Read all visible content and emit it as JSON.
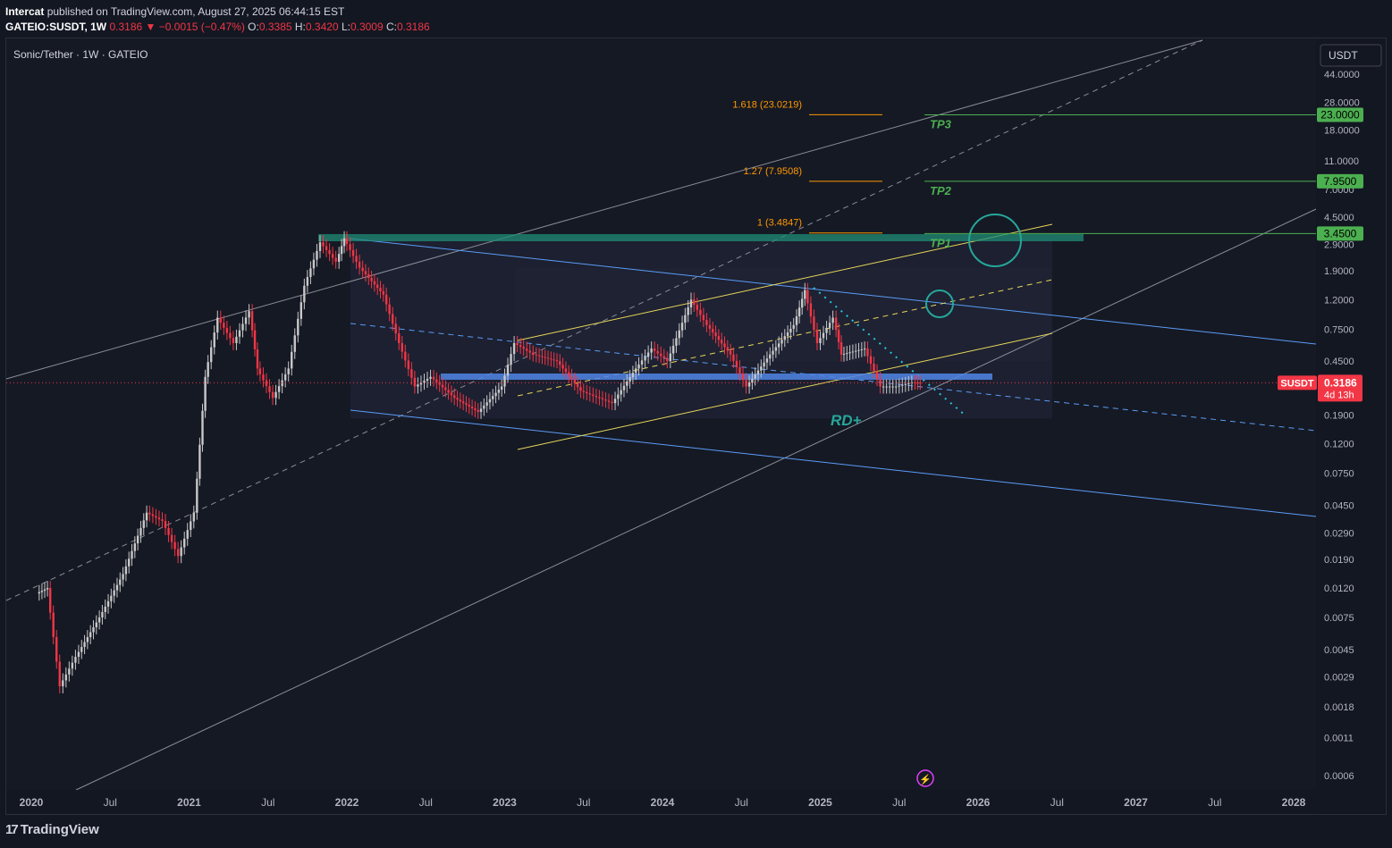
{
  "header": {
    "publisher": "Intercat",
    "published_text": "published on TradingView.com, August 27, 2025 06:44:15 EST",
    "symbol": "GATEIO:SUSDT, 1W",
    "price": "0.3186",
    "change": "−0.0015 (−0.47%)",
    "ohlc_o_label": "O:",
    "ohlc_o": "0.3385",
    "ohlc_h_label": "H:",
    "ohlc_h": "0.3420",
    "ohlc_l_label": "L:",
    "ohlc_l": "0.3009",
    "ohlc_c_label": "C:",
    "ohlc_c": "0.3186"
  },
  "chart_title": "Sonic/Tether · 1W · GATEIO",
  "currency_button": "USDT",
  "footer_brand": "TradingView",
  "colors": {
    "background": "#131722",
    "up": "#c8c8c8",
    "down": "#f23645",
    "tp": "#4caf50",
    "fib": "#ff9800",
    "channel": "#5b9cf6",
    "wedge": "#e8d65a"
  },
  "chart_data": {
    "type": "candlestick",
    "title": "Sonic/Tether · 1W · GATEIO",
    "y_scale": "log",
    "ylim": [
      0.0005,
      60
    ],
    "x_ticks": [
      "2020",
      "Jul",
      "2021",
      "Jul",
      "2022",
      "Jul",
      "2023",
      "Jul",
      "2024",
      "Jul",
      "2025",
      "Jul",
      "2026",
      "Jul",
      "2027",
      "Jul",
      "2028"
    ],
    "y_ticks": [
      "44.0000",
      "28.0000",
      "18.0000",
      "11.0000",
      "7.0000",
      "4.5000",
      "2.9000",
      "1.9000",
      "1.2000",
      "0.7500",
      "0.4500",
      "0.2900",
      "0.1900",
      "0.1200",
      "0.0750",
      "0.0450",
      "0.0290",
      "0.0190",
      "0.0120",
      "0.0075",
      "0.0045",
      "0.0029",
      "0.0018",
      "0.0011",
      "0.0006"
    ],
    "current_price": {
      "label": "SUSDT",
      "value": "0.3186",
      "countdown": "4d 13h"
    },
    "price_path": [
      [
        2020.05,
        0.011
      ],
      [
        2020.12,
        0.012
      ],
      [
        2020.2,
        0.0025
      ],
      [
        2020.3,
        0.004
      ],
      [
        2020.45,
        0.0075
      ],
      [
        2020.6,
        0.015
      ],
      [
        2020.75,
        0.04
      ],
      [
        2020.85,
        0.035
      ],
      [
        2020.95,
        0.02
      ],
      [
        2021.05,
        0.04
      ],
      [
        2021.12,
        0.35
      ],
      [
        2021.2,
        0.9
      ],
      [
        2021.3,
        0.6
      ],
      [
        2021.4,
        1.0
      ],
      [
        2021.45,
        0.4
      ],
      [
        2021.55,
        0.25
      ],
      [
        2021.65,
        0.4
      ],
      [
        2021.75,
        1.5
      ],
      [
        2021.85,
        3.0
      ],
      [
        2021.95,
        2.2
      ],
      [
        2022.0,
        3.2
      ],
      [
        2022.1,
        2.0
      ],
      [
        2022.25,
        1.3
      ],
      [
        2022.35,
        0.6
      ],
      [
        2022.45,
        0.3
      ],
      [
        2022.55,
        0.35
      ],
      [
        2022.7,
        0.25
      ],
      [
        2022.85,
        0.2
      ],
      [
        2023.0,
        0.3
      ],
      [
        2023.08,
        0.6
      ],
      [
        2023.2,
        0.5
      ],
      [
        2023.35,
        0.45
      ],
      [
        2023.5,
        0.28
      ],
      [
        2023.7,
        0.23
      ],
      [
        2023.85,
        0.4
      ],
      [
        2023.95,
        0.55
      ],
      [
        2024.05,
        0.45
      ],
      [
        2024.2,
        1.2
      ],
      [
        2024.3,
        0.8
      ],
      [
        2024.45,
        0.5
      ],
      [
        2024.55,
        0.3
      ],
      [
        2024.7,
        0.5
      ],
      [
        2024.85,
        0.8
      ],
      [
        2024.92,
        1.4
      ],
      [
        2025.0,
        0.6
      ],
      [
        2025.1,
        0.9
      ],
      [
        2025.15,
        0.5
      ],
      [
        2025.3,
        0.55
      ],
      [
        2025.4,
        0.3
      ],
      [
        2025.5,
        0.3
      ],
      [
        2025.6,
        0.32
      ],
      [
        2025.65,
        0.3186
      ]
    ],
    "horizontal_levels": [
      {
        "label": "TP3",
        "price_label": "23.0000",
        "value": 23.0
      },
      {
        "label": "TP2",
        "price_label": "7.9500",
        "value": 7.95
      },
      {
        "label": "TP1",
        "price_label": "3.4500",
        "value": 3.45
      }
    ],
    "fib_levels": [
      {
        "label": "1.618 (23.0219)",
        "value": 23.0219
      },
      {
        "label": "1.27 (7.9508)",
        "value": 7.9508
      },
      {
        "label": "1 (3.4847)",
        "value": 3.4847
      }
    ],
    "annotations": [
      "RD+"
    ]
  }
}
